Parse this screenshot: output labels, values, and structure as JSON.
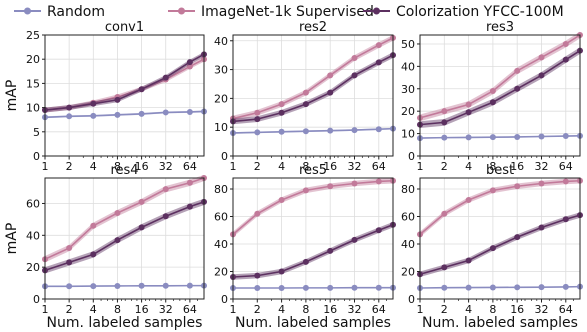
{
  "legend": {
    "placement": "top",
    "entries": [
      {
        "label": "Random",
        "color": "#8a8cc0"
      },
      {
        "label": "ImageNet-1k Supervised",
        "color": "#c27a9a"
      },
      {
        "label": "Colorization YFCC-100M",
        "color": "#5c3060"
      }
    ]
  },
  "shared_axes": {
    "ylabel": "mAP",
    "xlabel": "Num. labeled samples",
    "x_scale": "log2",
    "x_ticks": [
      1,
      2,
      4,
      8,
      16,
      32,
      64
    ],
    "grid": true
  },
  "chart_data": [
    {
      "type": "line",
      "title": "conv1",
      "x": [
        1,
        2,
        4,
        8,
        16,
        32,
        64,
        96
      ],
      "xlim": [
        1,
        96
      ],
      "ylim": [
        0,
        25
      ],
      "yticks": [
        0,
        5,
        10,
        15,
        20,
        25
      ],
      "xlabel": "",
      "ylabel": "mAP",
      "series": [
        {
          "name": "Random",
          "values": [
            8.0,
            8.2,
            8.3,
            8.5,
            8.7,
            9.0,
            9.1,
            9.2
          ],
          "band": 0.2
        },
        {
          "name": "ImageNet-1k Supervised",
          "values": [
            9.5,
            10.0,
            11.0,
            12.2,
            13.8,
            15.8,
            18.5,
            20.0
          ],
          "band": 0.5
        },
        {
          "name": "Colorization YFCC-100M",
          "values": [
            9.5,
            10.0,
            10.8,
            11.6,
            13.8,
            16.2,
            19.4,
            21.0
          ],
          "band": 0.5
        }
      ]
    },
    {
      "type": "line",
      "title": "res2",
      "x": [
        1,
        2,
        4,
        8,
        16,
        32,
        64,
        96
      ],
      "xlim": [
        1,
        96
      ],
      "ylim": [
        0,
        42
      ],
      "yticks": [
        0,
        10,
        20,
        30,
        40
      ],
      "xlabel": "",
      "ylabel": "",
      "series": [
        {
          "name": "Random",
          "values": [
            8.0,
            8.2,
            8.4,
            8.6,
            8.8,
            9.0,
            9.3,
            9.5
          ],
          "band": 0.3
        },
        {
          "name": "ImageNet-1k Supervised",
          "values": [
            13.0,
            15.0,
            18.0,
            22.0,
            28.0,
            34.0,
            38.5,
            41.0
          ],
          "band": 1.0
        },
        {
          "name": "Colorization YFCC-100M",
          "values": [
            12.0,
            12.8,
            15.0,
            18.0,
            22.0,
            28.0,
            32.5,
            35.0
          ],
          "band": 1.0
        }
      ]
    },
    {
      "type": "line",
      "title": "res3",
      "x": [
        1,
        2,
        4,
        8,
        16,
        32,
        64,
        96
      ],
      "xlim": [
        1,
        96
      ],
      "ylim": [
        0,
        54
      ],
      "yticks": [
        0,
        10,
        20,
        30,
        40,
        50
      ],
      "xlabel": "",
      "ylabel": "",
      "series": [
        {
          "name": "Random",
          "values": [
            8.0,
            8.2,
            8.3,
            8.4,
            8.5,
            8.7,
            8.9,
            9.0
          ],
          "band": 0.3
        },
        {
          "name": "ImageNet-1k Supervised",
          "values": [
            17.0,
            20.0,
            23.0,
            29.0,
            38.0,
            44.0,
            50.0,
            54.0
          ],
          "band": 1.5
        },
        {
          "name": "Colorization YFCC-100M",
          "values": [
            14.0,
            15.0,
            19.5,
            24.0,
            30.0,
            36.0,
            43.0,
            47.0
          ],
          "band": 1.5
        }
      ]
    },
    {
      "type": "line",
      "title": "res4",
      "x": [
        1,
        2,
        4,
        8,
        16,
        32,
        64,
        96
      ],
      "xlim": [
        1,
        96
      ],
      "ylim": [
        0,
        76
      ],
      "yticks": [
        0,
        20,
        40,
        60
      ],
      "xlabel": "Num. labeled samples",
      "ylabel": "mAP",
      "series": [
        {
          "name": "Random",
          "values": [
            8.0,
            8.0,
            8.1,
            8.2,
            8.3,
            8.3,
            8.4,
            8.4
          ],
          "band": 0.3
        },
        {
          "name": "ImageNet-1k Supervised",
          "values": [
            25.0,
            32.0,
            46.0,
            54.0,
            61.0,
            69.0,
            73.0,
            76.0
          ],
          "band": 2.0
        },
        {
          "name": "Colorization YFCC-100M",
          "values": [
            18.0,
            23.0,
            28.0,
            37.0,
            45.0,
            52.0,
            58.0,
            61.0
          ],
          "band": 2.0
        }
      ]
    },
    {
      "type": "line",
      "title": "res5",
      "x": [
        1,
        2,
        4,
        8,
        16,
        32,
        64,
        96
      ],
      "xlim": [
        1,
        96
      ],
      "ylim": [
        0,
        88
      ],
      "yticks": [
        0,
        20,
        40,
        60,
        80
      ],
      "xlabel": "Num. labeled samples",
      "ylabel": "",
      "series": [
        {
          "name": "Random",
          "values": [
            8.0,
            8.0,
            8.0,
            8.1,
            8.1,
            8.2,
            8.2,
            8.2
          ],
          "band": 0.3
        },
        {
          "name": "ImageNet-1k Supervised",
          "values": [
            47.0,
            62.0,
            72.0,
            79.0,
            82.0,
            84.0,
            85.5,
            86.0
          ],
          "band": 2.0
        },
        {
          "name": "Colorization YFCC-100M",
          "values": [
            16.0,
            17.0,
            20.0,
            27.0,
            35.0,
            43.0,
            50.0,
            54.0
          ],
          "band": 2.0
        }
      ]
    },
    {
      "type": "line",
      "title": "best",
      "x": [
        1,
        2,
        4,
        8,
        16,
        32,
        64,
        96
      ],
      "xlim": [
        1,
        96
      ],
      "ylim": [
        0,
        88
      ],
      "yticks": [
        0,
        20,
        40,
        60,
        80
      ],
      "xlabel": "Num. labeled samples",
      "ylabel": "",
      "series": [
        {
          "name": "Random",
          "values": [
            8.0,
            8.2,
            8.3,
            8.4,
            8.5,
            8.6,
            8.8,
            9.0
          ],
          "band": 0.3
        },
        {
          "name": "ImageNet-1k Supervised",
          "values": [
            47.0,
            62.0,
            72.0,
            79.0,
            82.0,
            84.0,
            85.5,
            86.0
          ],
          "band": 2.0
        },
        {
          "name": "Colorization YFCC-100M",
          "values": [
            18.0,
            23.0,
            28.0,
            37.0,
            45.0,
            52.0,
            58.0,
            61.0
          ],
          "band": 2.0
        }
      ]
    }
  ]
}
